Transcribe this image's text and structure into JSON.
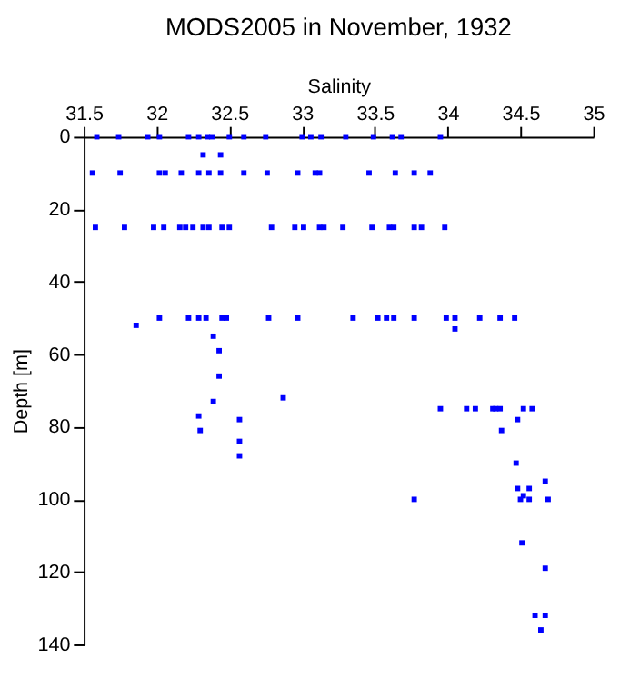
{
  "chart_data": {
    "type": "scatter",
    "title": "MODS2005 in November, 1932",
    "xlabel": "Salinity",
    "ylabel": "Depth [m]",
    "xlim": [
      31.5,
      35
    ],
    "xticks": [
      31.5,
      32,
      32.5,
      33,
      33.5,
      34,
      34.5,
      35
    ],
    "ylim": [
      140,
      0
    ],
    "yticks": [
      0,
      20,
      40,
      60,
      80,
      100,
      120,
      140
    ],
    "grid": false,
    "legend": false,
    "marker": "square",
    "series": [
      {
        "color": "#0000ff",
        "x": [
          31.59,
          31.74,
          31.94,
          32.02,
          32.22,
          32.29,
          32.35,
          32.38,
          32.5,
          32.6,
          32.75,
          33.0,
          33.06,
          33.13,
          33.3,
          33.49,
          33.62,
          33.68,
          33.95,
          32.32,
          32.44,
          31.56,
          31.75,
          32.02,
          32.06,
          32.17,
          32.29,
          32.36,
          32.44,
          32.6,
          32.76,
          32.97,
          33.09,
          33.12,
          33.46,
          33.64,
          33.77,
          33.88,
          31.58,
          31.78,
          31.98,
          32.05,
          32.16,
          32.2,
          32.25,
          32.32,
          32.36,
          32.45,
          32.5,
          32.79,
          32.95,
          33.01,
          33.12,
          33.15,
          33.28,
          33.48,
          33.6,
          33.63,
          33.77,
          33.82,
          33.98,
          32.02,
          32.22,
          32.29,
          32.34,
          32.45,
          32.48,
          32.77,
          32.97,
          33.35,
          33.52,
          33.58,
          33.63,
          33.77,
          33.99,
          34.05,
          34.22,
          34.36,
          34.46,
          31.86,
          34.05,
          32.39,
          32.43,
          32.43,
          32.39,
          32.87,
          32.29,
          32.3,
          32.57,
          32.57,
          32.57,
          33.95,
          34.13,
          34.19,
          34.31,
          34.33,
          34.36,
          34.52,
          34.58,
          34.48,
          34.37,
          34.47,
          34.67,
          34.48,
          34.56,
          34.52,
          33.77,
          34.5,
          34.56,
          34.69,
          34.51,
          34.67,
          34.6,
          34.67,
          34.64
        ],
        "values": [
          0,
          0,
          0,
          0,
          0,
          0,
          0,
          0,
          0,
          0,
          0,
          0,
          0,
          0,
          0,
          0,
          0,
          0,
          0,
          5,
          5,
          10,
          10,
          10,
          10,
          10,
          10,
          10,
          10,
          10,
          10,
          10,
          10,
          10,
          10,
          10,
          10,
          10,
          25,
          25,
          25,
          25,
          25,
          25,
          25,
          25,
          25,
          25,
          25,
          25,
          25,
          25,
          25,
          25,
          25,
          25,
          25,
          25,
          25,
          25,
          25,
          50,
          50,
          50,
          50,
          50,
          50,
          50,
          50,
          50,
          50,
          50,
          50,
          50,
          50,
          50,
          50,
          50,
          50,
          52,
          53,
          55,
          59,
          66,
          73,
          72,
          77,
          81,
          78,
          84,
          88,
          75,
          75,
          75,
          75,
          75,
          75,
          75,
          75,
          78,
          81,
          90,
          95,
          97,
          97,
          99,
          100,
          100,
          100,
          100,
          112,
          119,
          132,
          132,
          136
        ]
      }
    ]
  }
}
